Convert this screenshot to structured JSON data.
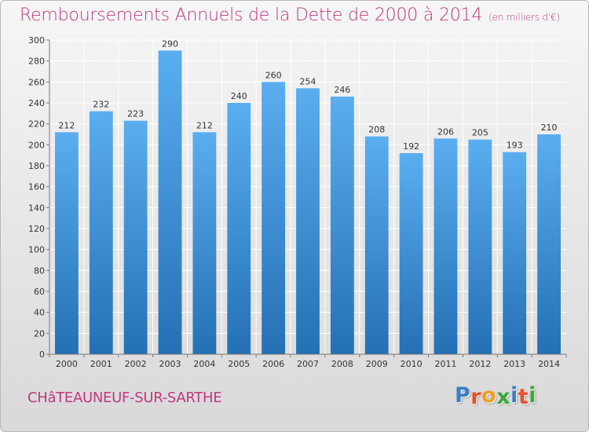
{
  "header": {
    "title": "Remboursements Annuels de la Dette de 2000 à 2014",
    "unit_note": "(en milliers d'€)"
  },
  "footer": {
    "town": "CHâTEAUNEUF-SUR-SARTHE",
    "logo_letters": [
      "P",
      "r",
      "o",
      "x",
      "i",
      "t",
      "i"
    ],
    "logo_colors": [
      "#3a7fc4",
      "#e8502a",
      "#f0a020",
      "#3aa63a",
      "#3a7fc4",
      "#e8502a",
      "#3aa63a"
    ]
  },
  "colors": {
    "bar_top": "#5aaef0",
    "bar_bottom": "#2470b4",
    "grid": "#ffffff",
    "axis": "#777777",
    "text": "#333333"
  },
  "chart_data": {
    "type": "bar",
    "title": "Remboursements Annuels de la Dette de 2000 à 2014",
    "xlabel": "",
    "ylabel": "",
    "ylim": [
      0,
      300
    ],
    "ytick_step": 20,
    "grid": true,
    "categories": [
      "2000",
      "2001",
      "2002",
      "2003",
      "2004",
      "2005",
      "2006",
      "2007",
      "2008",
      "2009",
      "2010",
      "2011",
      "2012",
      "2013",
      "2014"
    ],
    "values": [
      212,
      232,
      223,
      290,
      212,
      240,
      260,
      254,
      246,
      208,
      192,
      206,
      205,
      193,
      210
    ],
    "value_labels": [
      "212",
      "232",
      "223",
      "290",
      "212",
      "240",
      "260",
      "254",
      "246",
      "208",
      "192",
      "206",
      "205",
      "193",
      "210"
    ]
  }
}
